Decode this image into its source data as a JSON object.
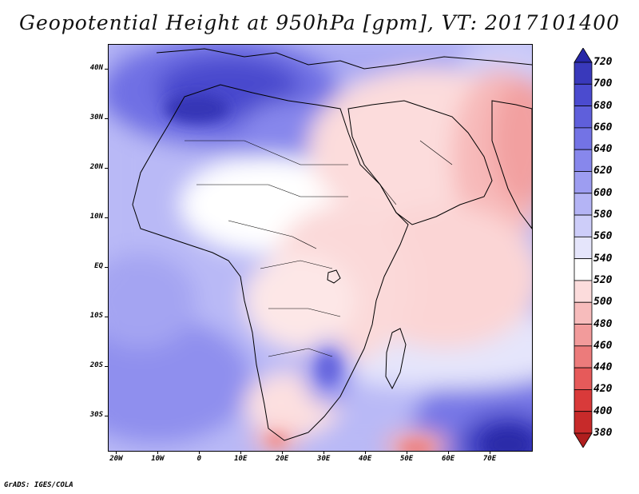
{
  "title": "Geopotential Height at 950hPa [gpm], VT: 2017101400",
  "credit": "GrADS: IGES/COLA",
  "map": {
    "lat_labels": [
      "40N",
      "30N",
      "20N",
      "10N",
      "EQ",
      "10S",
      "20S",
      "30S"
    ],
    "lon_labels": [
      "20W",
      "10W",
      "0",
      "10E",
      "20E",
      "30E",
      "40E",
      "50E",
      "60E",
      "70E"
    ],
    "lat_range": [
      -37,
      45
    ],
    "lon_range": [
      -22,
      80
    ],
    "ocean_color": "#b9b9f6",
    "land_color": "#fde3e3"
  },
  "colorbar": {
    "levels": [
      "720",
      "700",
      "680",
      "660",
      "640",
      "620",
      "600",
      "580",
      "560",
      "540",
      "520",
      "500",
      "480",
      "460",
      "440",
      "420",
      "400",
      "380"
    ],
    "colors": [
      "#2727a7",
      "#3939bb",
      "#4b4bcf",
      "#5f5fdb",
      "#7373e5",
      "#8787ec",
      "#9d9df1",
      "#b4b4f5",
      "#cdcdf9",
      "#e5e5fb",
      "#ffffff",
      "#fcdcdc",
      "#f7bcbc",
      "#f29b9b",
      "#ec7b7b",
      "#e65a5a",
      "#d93a3a",
      "#c72a2a",
      "#b01e1e"
    ]
  }
}
